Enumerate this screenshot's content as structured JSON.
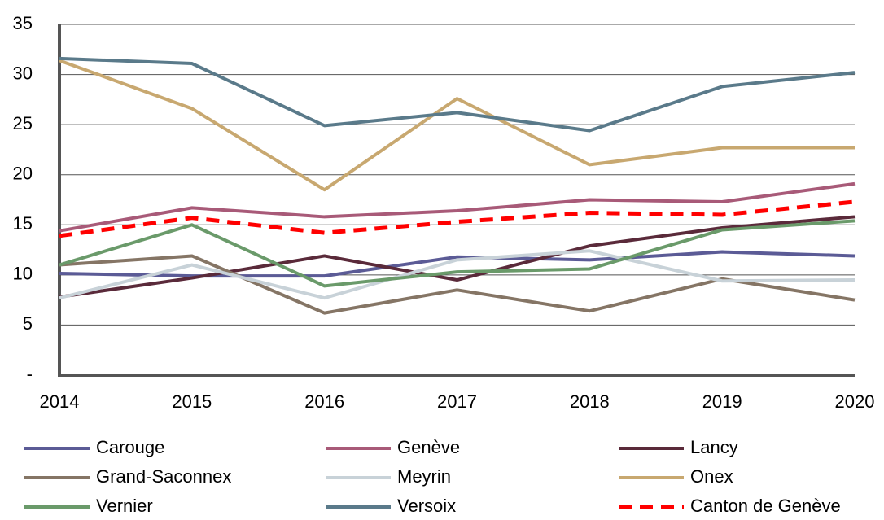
{
  "chart_data": {
    "type": "line",
    "categories": [
      "2014",
      "2015",
      "2016",
      "2017",
      "2018",
      "2019",
      "2020"
    ],
    "series": [
      {
        "name": "Carouge",
        "color": "#5b5b96",
        "values": [
          10.15,
          9.9,
          9.9,
          11.8,
          11.5,
          12.3,
          11.9
        ]
      },
      {
        "name": "Genève",
        "color": "#a85a78",
        "values": [
          14.4,
          16.7,
          15.8,
          16.4,
          17.5,
          17.3,
          19.1
        ]
      },
      {
        "name": "Lancy",
        "color": "#5a2a3a",
        "values": [
          7.8,
          9.7,
          11.9,
          9.5,
          12.9,
          14.7,
          15.8
        ]
      },
      {
        "name": "Grand-Saconnex",
        "color": "#857565",
        "values": [
          11.0,
          11.9,
          6.2,
          8.5,
          6.4,
          9.6,
          7.5
        ]
      },
      {
        "name": "Meyrin",
        "color": "#c8d2d8",
        "values": [
          7.7,
          11.0,
          7.7,
          11.5,
          12.4,
          9.4,
          9.5
        ]
      },
      {
        "name": "Onex",
        "color": "#c8a870",
        "values": [
          31.4,
          26.6,
          18.5,
          27.6,
          21.0,
          22.7,
          22.7
        ]
      },
      {
        "name": "Vernier",
        "color": "#6a9a6a",
        "values": [
          11.0,
          15.0,
          8.9,
          10.3,
          10.6,
          14.5,
          15.4
        ]
      },
      {
        "name": "Versoix",
        "color": "#5a7a8a",
        "values": [
          31.6,
          31.1,
          24.9,
          26.2,
          24.4,
          28.8,
          30.2
        ]
      },
      {
        "name": "Canton de Genève",
        "color": "#ff0000",
        "dashed": true,
        "values": [
          13.9,
          15.7,
          14.2,
          15.3,
          16.2,
          16.0,
          17.3
        ]
      }
    ],
    "ylim": [
      0,
      35
    ],
    "yticks": [
      {
        "value": 0,
        "label": "-"
      },
      5,
      10,
      15,
      20,
      25,
      30,
      35
    ],
    "grid": true,
    "legend": "bottom"
  }
}
